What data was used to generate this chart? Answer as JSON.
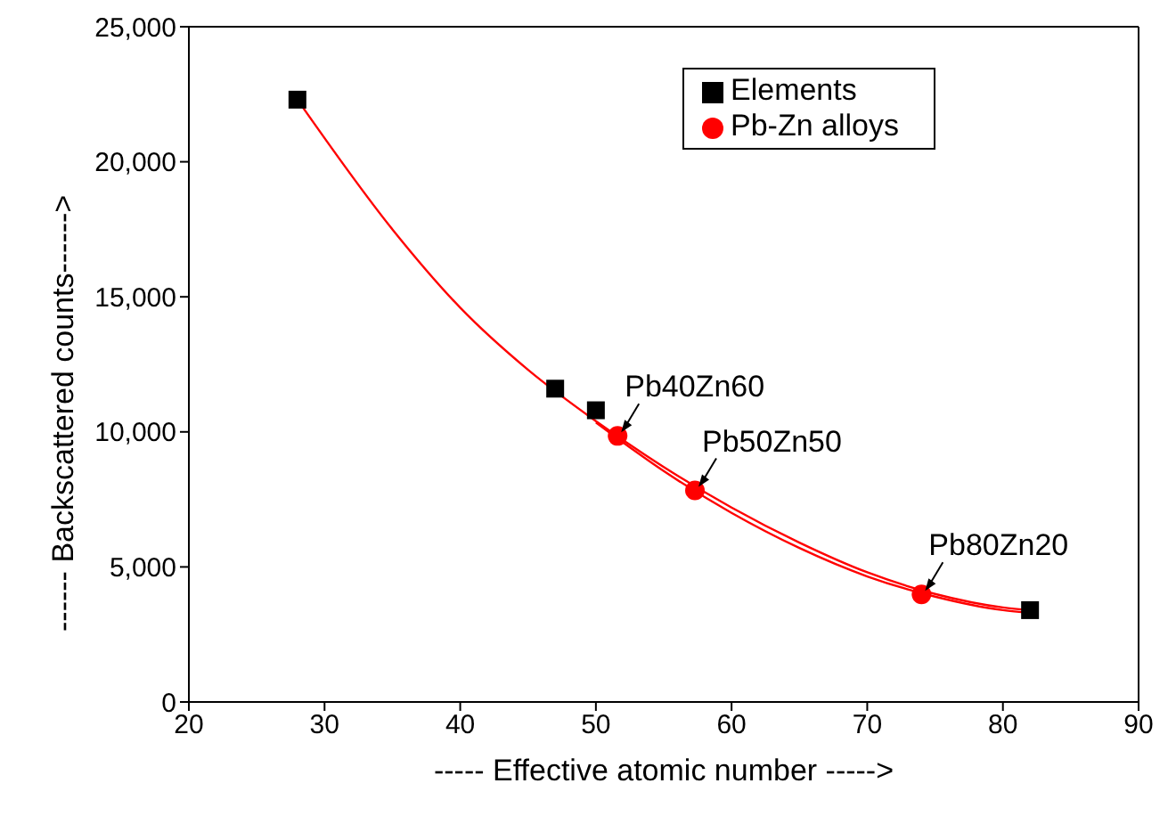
{
  "chart_data": {
    "type": "scatter",
    "xlabel": "----- Effective atomic number ----->",
    "ylabel": "------ Backscattered counts------>",
    "xlim": [
      20,
      90
    ],
    "xticks": [
      20,
      30,
      40,
      50,
      60,
      70,
      80,
      90
    ],
    "ylim": [
      0,
      25000
    ],
    "yticks": [
      0,
      {
        "value": 5000,
        "label": "5,000"
      },
      {
        "value": 10000,
        "label": "10,000"
      },
      {
        "value": 15000,
        "label": "15,000"
      },
      {
        "value": 20000,
        "label": "20,000"
      },
      {
        "value": 25000,
        "label": "25,000"
      }
    ],
    "grid": false,
    "legend": "top right",
    "series": [
      {
        "type": "line",
        "color": "#ff0000",
        "marker": "none",
        "line_style": "solid",
        "x": [
          28,
          35,
          40,
          45,
          50,
          55,
          60,
          65,
          70,
          75,
          80,
          82
        ],
        "values": [
          22300,
          17500,
          14600,
          12300,
          10400,
          8700,
          7200,
          5900,
          4800,
          4000,
          3500,
          3400
        ]
      },
      {
        "type": "line",
        "color": "#ff0000",
        "marker": "none",
        "line_style": "solid",
        "x": [
          50,
          55,
          60,
          65,
          70,
          75,
          80,
          82
        ],
        "values": [
          10350,
          8550,
          7000,
          5700,
          4650,
          3900,
          3400,
          3300
        ]
      },
      {
        "name": "Elements",
        "color": "#000000",
        "marker": "square",
        "x": [
          28,
          47,
          50,
          82
        ],
        "values": [
          22300,
          11600,
          10800,
          3400
        ]
      },
      {
        "name": "Pb-Zn alloys",
        "color": "#ff0000",
        "marker": "circle",
        "x": [
          51.6,
          57.3,
          74
        ],
        "values": [
          9850,
          7830,
          3980
        ]
      }
    ],
    "annotations": [
      {
        "text": "Pb40Zn60",
        "x": 51.6,
        "y": 9850
      },
      {
        "text": "Pb50Zn50",
        "x": 57.3,
        "y": 7830
      },
      {
        "text": "Pb80Zn20",
        "x": 74,
        "y": 3980
      }
    ]
  }
}
